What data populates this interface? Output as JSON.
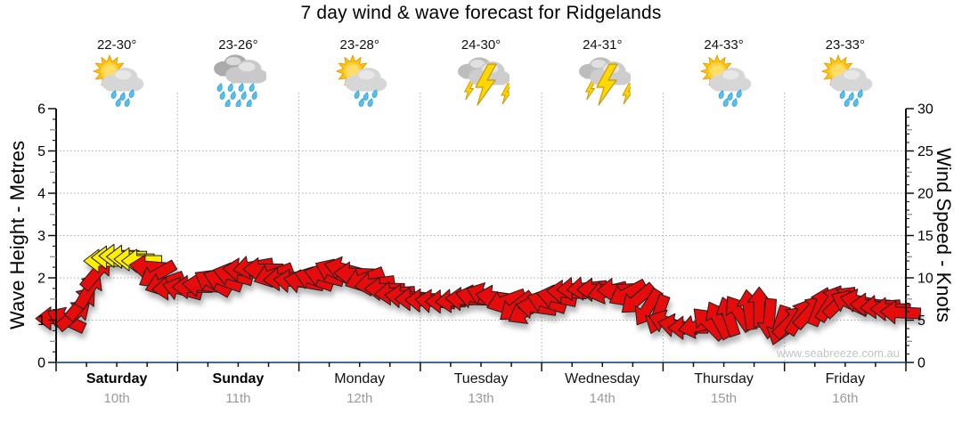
{
  "title": "7 day wind & wave forecast for Ridgelands",
  "watermark": "www.seabreeze.com.au",
  "axes": {
    "left_label": "Wave Height - Metres",
    "right_label": "Wind Speed - Knots",
    "left_ticks": [
      0,
      1,
      2,
      3,
      4,
      5,
      6
    ],
    "right_ticks": [
      0,
      5,
      10,
      15,
      20,
      25,
      30
    ]
  },
  "days": [
    {
      "name": "Saturday",
      "date": "10th",
      "temp": "22-30°",
      "icon": "sun-cloud-rain-icon",
      "bold": true
    },
    {
      "name": "Sunday",
      "date": "11th",
      "temp": "23-26°",
      "icon": "rain-icon",
      "bold": true
    },
    {
      "name": "Monday",
      "date": "12th",
      "temp": "23-28°",
      "icon": "sun-cloud-rain-icon",
      "bold": false
    },
    {
      "name": "Tuesday",
      "date": "13th",
      "temp": "24-30°",
      "icon": "storm-icon",
      "bold": false
    },
    {
      "name": "Wednesday",
      "date": "14th",
      "temp": "24-31°",
      "icon": "storm-icon",
      "bold": false
    },
    {
      "name": "Thursday",
      "date": "15th",
      "temp": "24-33°",
      "icon": "sun-cloud-rain-icon",
      "bold": false
    },
    {
      "name": "Friday",
      "date": "16th",
      "temp": "23-33°",
      "icon": "sun-cloud-rain-icon",
      "bold": false
    }
  ],
  "chart_data": {
    "type": "wind-arrow-timeseries",
    "title": "7 day wind & wave forecast for Ridgelands",
    "left_axis": {
      "label": "Wave Height - Metres",
      "range": [
        0,
        6
      ],
      "ticks": [
        0,
        1,
        2,
        3,
        4,
        5,
        6
      ],
      "unit": "m"
    },
    "right_axis": {
      "label": "Wind Speed - Knots",
      "range": [
        0,
        30
      ],
      "ticks": [
        0,
        5,
        10,
        15,
        20,
        25,
        30
      ],
      "unit": "kt"
    },
    "x_axis": {
      "unit": "hours",
      "range": [
        0,
        168
      ],
      "day_tick_every_hours": 24,
      "minor_tick_every_hours": 6,
      "day_labels": [
        "Saturday 10th",
        "Sunday 11th",
        "Monday 12th",
        "Tuesday 13th",
        "Wednesday 14th",
        "Thursday 15th",
        "Friday 16th"
      ]
    },
    "grid": true,
    "colors": {
      "arrow_normal": "#E60C0C",
      "arrow_strong": "#FFEE00",
      "arrow_outline": "#1F1F1F",
      "bottom_axis": "#3A6B9C",
      "gridline": "#ABABAB"
    },
    "strong_threshold_knots": 11.8,
    "arrows_format": [
      "hour",
      "knots",
      "direction_deg_cw_from_east"
    ],
    "arrows": [
      [
        0,
        5.2,
        180
      ],
      [
        2,
        5.0,
        205
      ],
      [
        3.5,
        5.6,
        320
      ],
      [
        5,
        7.0,
        310
      ],
      [
        6.5,
        8.6,
        300
      ],
      [
        8,
        10.6,
        310
      ],
      [
        9.5,
        12.0,
        180
      ],
      [
        11,
        12.4,
        180
      ],
      [
        12.5,
        12.6,
        180
      ],
      [
        14,
        12.5,
        180
      ],
      [
        15.5,
        12.2,
        180
      ],
      [
        17,
        12.0,
        180
      ],
      [
        18.5,
        11.3,
        185
      ],
      [
        20,
        10.4,
        150
      ],
      [
        21.5,
        9.4,
        160
      ],
      [
        23,
        8.8,
        175
      ],
      [
        25,
        8.6,
        195
      ],
      [
        27,
        8.9,
        180
      ],
      [
        29,
        9.1,
        185
      ],
      [
        31,
        9.4,
        210
      ],
      [
        33,
        9.7,
        200
      ],
      [
        35,
        10.3,
        195
      ],
      [
        37,
        10.9,
        185
      ],
      [
        39,
        11.3,
        170
      ],
      [
        41,
        11.0,
        180
      ],
      [
        43,
        10.4,
        160
      ],
      [
        45,
        9.9,
        175
      ],
      [
        47,
        9.6,
        185
      ],
      [
        49,
        9.5,
        190
      ],
      [
        51,
        9.8,
        200
      ],
      [
        53,
        10.2,
        195
      ],
      [
        55,
        10.7,
        205
      ],
      [
        57,
        11.0,
        195
      ],
      [
        59,
        10.5,
        182
      ],
      [
        61,
        9.9,
        160
      ],
      [
        63,
        9.3,
        172
      ],
      [
        65,
        8.7,
        180
      ],
      [
        67,
        8.2,
        176
      ],
      [
        69,
        7.8,
        184
      ],
      [
        71,
        7.5,
        180
      ],
      [
        73,
        7.3,
        182
      ],
      [
        75,
        7.2,
        186
      ],
      [
        77,
        7.2,
        180
      ],
      [
        79,
        7.3,
        176
      ],
      [
        81,
        7.5,
        182
      ],
      [
        83,
        7.7,
        192
      ],
      [
        85,
        7.9,
        200
      ],
      [
        87,
        7.7,
        188
      ],
      [
        89,
        7.3,
        160
      ],
      [
        91,
        6.6,
        142
      ],
      [
        93,
        6.1,
        150
      ],
      [
        95,
        6.5,
        188
      ],
      [
        97,
        7.1,
        198
      ],
      [
        99,
        7.7,
        192
      ],
      [
        101,
        8.3,
        184
      ],
      [
        103,
        8.7,
        178
      ],
      [
        105,
        8.8,
        174
      ],
      [
        107,
        8.6,
        180
      ],
      [
        109,
        8.4,
        166
      ],
      [
        111,
        8.6,
        178
      ],
      [
        113,
        8.2,
        152
      ],
      [
        115,
        7.5,
        140
      ],
      [
        117,
        6.5,
        122
      ],
      [
        119,
        5.7,
        110
      ],
      [
        121,
        4.7,
        200
      ],
      [
        123,
        4.3,
        190
      ],
      [
        125,
        4.1,
        180
      ],
      [
        127,
        4.3,
        168
      ],
      [
        129,
        4.6,
        225
      ],
      [
        131,
        5.0,
        242
      ],
      [
        133,
        5.4,
        252
      ],
      [
        135,
        5.8,
        236
      ],
      [
        137,
        6.2,
        262
      ],
      [
        139,
        6.5,
        270
      ],
      [
        141,
        5.2,
        95
      ],
      [
        143,
        4.4,
        108
      ],
      [
        145,
        4.8,
        315
      ],
      [
        147,
        5.4,
        302
      ],
      [
        149,
        6.0,
        312
      ],
      [
        151,
        6.6,
        292
      ],
      [
        153,
        7.0,
        302
      ],
      [
        155,
        7.2,
        316
      ],
      [
        157,
        7.0,
        205
      ],
      [
        159,
        7.2,
        192
      ],
      [
        161,
        6.8,
        182
      ],
      [
        163,
        6.6,
        176
      ],
      [
        165,
        6.3,
        180
      ],
      [
        167,
        5.9,
        183
      ]
    ]
  }
}
